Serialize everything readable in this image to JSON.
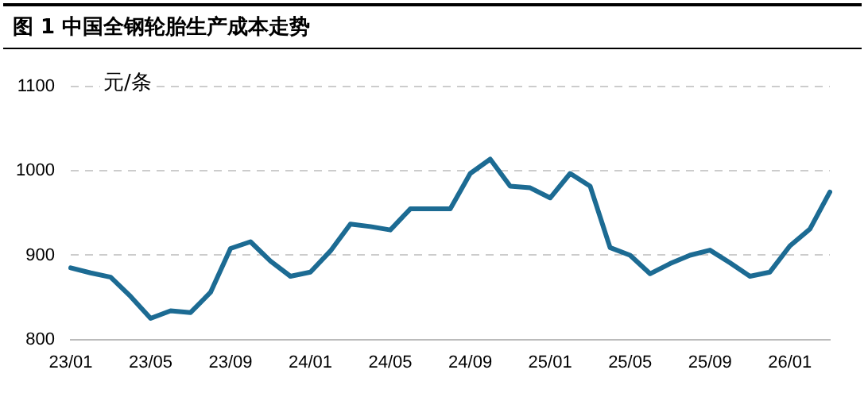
{
  "chart_data": {
    "type": "line",
    "title": "图 1  中国全钢轮胎生产成本走势",
    "ylabel": "元/条",
    "categories": [
      "23/01",
      null,
      null,
      null,
      "23/05",
      null,
      null,
      null,
      "23/09",
      null,
      null,
      null,
      "24/01",
      null,
      null,
      null,
      "24/05",
      null,
      null,
      null,
      "24/09",
      null,
      null,
      null,
      "25/01",
      null,
      null,
      null,
      "25/05",
      null,
      null,
      null,
      "25/09",
      null,
      null,
      null,
      "26/01",
      null,
      null
    ],
    "series": [
      {
        "color": "#1c6b93",
        "values": [
          885,
          879,
          874,
          851,
          825,
          834,
          832,
          856,
          908,
          916,
          893,
          875,
          880,
          905,
          937,
          934,
          930,
          955,
          955,
          955,
          997,
          1014,
          982,
          980,
          968,
          997,
          982,
          909,
          900,
          878,
          890,
          900,
          906,
          891,
          875,
          880,
          911,
          931,
          975
        ]
      }
    ],
    "ylim": [
      800,
      1100
    ],
    "yticks": [
      800,
      900,
      1000,
      1100
    ],
    "grid": "y",
    "legend": false,
    "marker": "none",
    "line_style": "solid"
  }
}
